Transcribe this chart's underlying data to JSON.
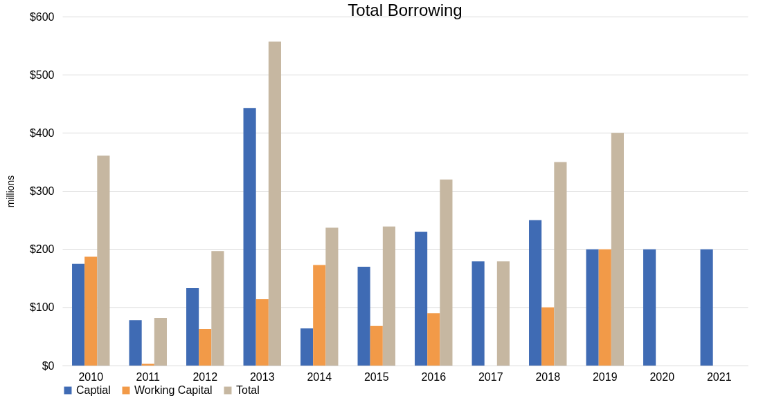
{
  "chart_data": {
    "type": "bar",
    "title": "Total Borrowing",
    "ylabel": "millions",
    "categories": [
      "2010",
      "2011",
      "2012",
      "2013",
      "2014",
      "2015",
      "2016",
      "2017",
      "2018",
      "2019",
      "2020",
      "2021"
    ],
    "series": [
      {
        "name": "Captial",
        "color": "#3f6bb4",
        "values": [
          175,
          78,
          133,
          443,
          64,
          170,
          230,
          179,
          250,
          200,
          200,
          200
        ]
      },
      {
        "name": "Working Capital",
        "color": "#f29a48",
        "values": [
          187,
          3,
          63,
          114,
          173,
          68,
          90,
          null,
          100,
          200,
          null,
          null
        ]
      },
      {
        "name": "Total",
        "color": "#c6b7a1",
        "values": [
          361,
          82,
          197,
          557,
          237,
          239,
          320,
          179,
          350,
          400,
          null,
          null
        ]
      }
    ],
    "ylim": [
      0,
      600
    ],
    "yticks": [
      {
        "value": 0,
        "label": "$0"
      },
      {
        "value": 100,
        "label": "$100"
      },
      {
        "value": 200,
        "label": "$200"
      },
      {
        "value": 300,
        "label": "$300"
      },
      {
        "value": 400,
        "label": "$400"
      },
      {
        "value": 500,
        "label": "$500"
      },
      {
        "value": 600,
        "label": "$600"
      }
    ],
    "grid": "y",
    "legend": "bottom"
  }
}
